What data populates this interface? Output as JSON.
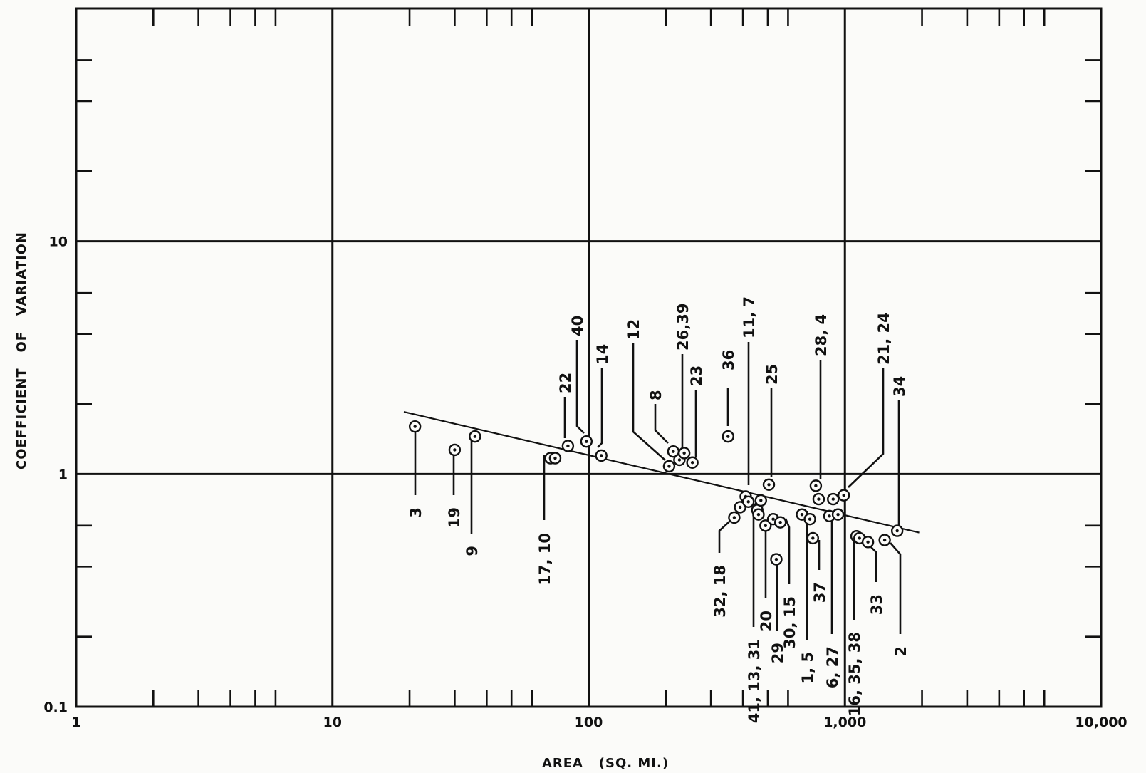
{
  "chart_data": {
    "type": "scatter",
    "xlabel": "AREA   (SQ. MI.)",
    "ylabel": "COEFFICIENT   OF   VARIATION",
    "x_scale": "log",
    "y_scale": "log",
    "xlim": [
      1,
      10000
    ],
    "ylim": [
      0.1,
      100
    ],
    "grid": true,
    "x_tick_labels": [
      {
        "value": 1,
        "label": "1"
      },
      {
        "value": 10,
        "label": "10"
      },
      {
        "value": 100,
        "label": "100"
      },
      {
        "value": 1000,
        "label": "1,000"
      },
      {
        "value": 10000,
        "label": "10,000"
      }
    ],
    "y_tick_labels": [
      {
        "value": 0.1,
        "label": "0.1"
      },
      {
        "value": 1,
        "label": "1"
      },
      {
        "value": 10,
        "label": "10"
      }
    ],
    "trend_line": {
      "x": [
        19,
        1950
      ],
      "y": [
        1.85,
        0.56
      ]
    },
    "points": [
      {
        "x": 21,
        "y": 1.6
      },
      {
        "x": 30,
        "y": 1.27
      },
      {
        "x": 36,
        "y": 1.45
      },
      {
        "x": 71,
        "y": 1.17
      },
      {
        "x": 74,
        "y": 1.17
      },
      {
        "x": 83,
        "y": 1.32
      },
      {
        "x": 98,
        "y": 1.38
      },
      {
        "x": 112,
        "y": 1.2
      },
      {
        "x": 206,
        "y": 1.08
      },
      {
        "x": 214,
        "y": 1.25
      },
      {
        "x": 226,
        "y": 1.15
      },
      {
        "x": 236,
        "y": 1.23
      },
      {
        "x": 254,
        "y": 1.12
      },
      {
        "x": 350,
        "y": 1.45
      },
      {
        "x": 370,
        "y": 0.65
      },
      {
        "x": 390,
        "y": 0.72
      },
      {
        "x": 410,
        "y": 0.8
      },
      {
        "x": 420,
        "y": 0.76
      },
      {
        "x": 455,
        "y": 0.7
      },
      {
        "x": 460,
        "y": 0.67
      },
      {
        "x": 470,
        "y": 0.77
      },
      {
        "x": 490,
        "y": 0.6
      },
      {
        "x": 505,
        "y": 0.9
      },
      {
        "x": 525,
        "y": 0.64
      },
      {
        "x": 540,
        "y": 0.43
      },
      {
        "x": 560,
        "y": 0.62
      },
      {
        "x": 680,
        "y": 0.67
      },
      {
        "x": 730,
        "y": 0.64
      },
      {
        "x": 750,
        "y": 0.53
      },
      {
        "x": 770,
        "y": 0.89
      },
      {
        "x": 790,
        "y": 0.78
      },
      {
        "x": 870,
        "y": 0.66
      },
      {
        "x": 900,
        "y": 0.78
      },
      {
        "x": 940,
        "y": 0.67
      },
      {
        "x": 990,
        "y": 0.81
      },
      {
        "x": 1110,
        "y": 0.54
      },
      {
        "x": 1140,
        "y": 0.53
      },
      {
        "x": 1230,
        "y": 0.51
      },
      {
        "x": 1430,
        "y": 0.52
      },
      {
        "x": 1600,
        "y": 0.57
      }
    ],
    "point_labels": [
      {
        "text": "3"
      },
      {
        "text": "19"
      },
      {
        "text": "9"
      },
      {
        "text": "17, 10"
      },
      {
        "text": "22"
      },
      {
        "text": "40"
      },
      {
        "text": "14"
      },
      {
        "text": "12"
      },
      {
        "text": "8"
      },
      {
        "text": "26,39"
      },
      {
        "text": "23"
      },
      {
        "text": "36"
      },
      {
        "text": "11, 7"
      },
      {
        "text": "25"
      },
      {
        "text": "28, 4"
      },
      {
        "text": "21, 24"
      },
      {
        "text": "34"
      },
      {
        "text": "32, 18"
      },
      {
        "text": "41, 13, 31"
      },
      {
        "text": "20"
      },
      {
        "text": "29"
      },
      {
        "text": "30, 15"
      },
      {
        "text": "1, 5"
      },
      {
        "text": "37"
      },
      {
        "text": "6, 27"
      },
      {
        "text": "16, 35, 38"
      },
      {
        "text": "33"
      },
      {
        "text": "2"
      }
    ]
  }
}
